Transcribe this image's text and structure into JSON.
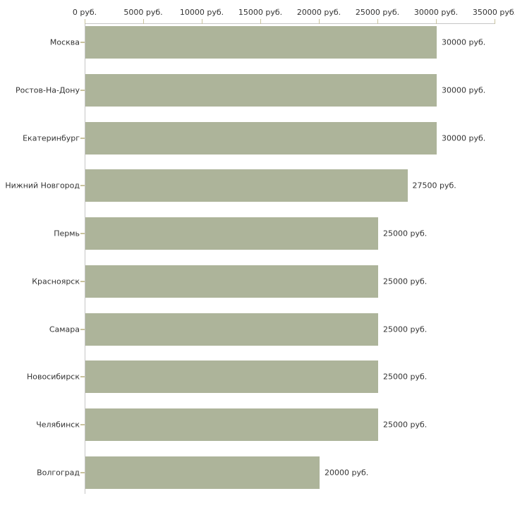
{
  "chart_data": {
    "type": "bar",
    "orientation": "horizontal",
    "title": "",
    "xlabel": "",
    "ylabel": "",
    "categories": [
      "Москва",
      "Ростов-На-Дону",
      "Екатеринбург",
      "Нижний Новгород",
      "Пермь",
      "Красноярск",
      "Самара",
      "Новосибирск",
      "Челябинск",
      "Волгоград"
    ],
    "values": [
      30000,
      30000,
      30000,
      27500,
      25000,
      25000,
      25000,
      25000,
      25000,
      20000
    ],
    "value_labels": [
      "30000 руб.",
      "30000 руб.",
      "30000 руб.",
      "27500 руб.",
      "25000 руб.",
      "25000 руб.",
      "25000 руб.",
      "25000 руб.",
      "25000 руб.",
      "20000 руб."
    ],
    "unit_suffix": " руб.",
    "xlim": [
      0,
      35000
    ],
    "x_ticks": [
      {
        "value": 0,
        "label": "0 руб."
      },
      {
        "value": 5000,
        "label": "5000 руб."
      },
      {
        "value": 10000,
        "label": "10000 руб."
      },
      {
        "value": 15000,
        "label": "15000 руб."
      },
      {
        "value": 20000,
        "label": "20000 руб."
      },
      {
        "value": 25000,
        "label": "25000 руб."
      },
      {
        "value": 30000,
        "label": "30000 руб."
      },
      {
        "value": 35000,
        "label": "35000 руб."
      }
    ],
    "grid": false,
    "legend": null,
    "colors": {
      "bar": "#adb49a",
      "axis": "#c6c6c6",
      "tick": "#c9c39d",
      "text": "#333333",
      "background": "#ffffff"
    },
    "x_axis_position": "top"
  }
}
